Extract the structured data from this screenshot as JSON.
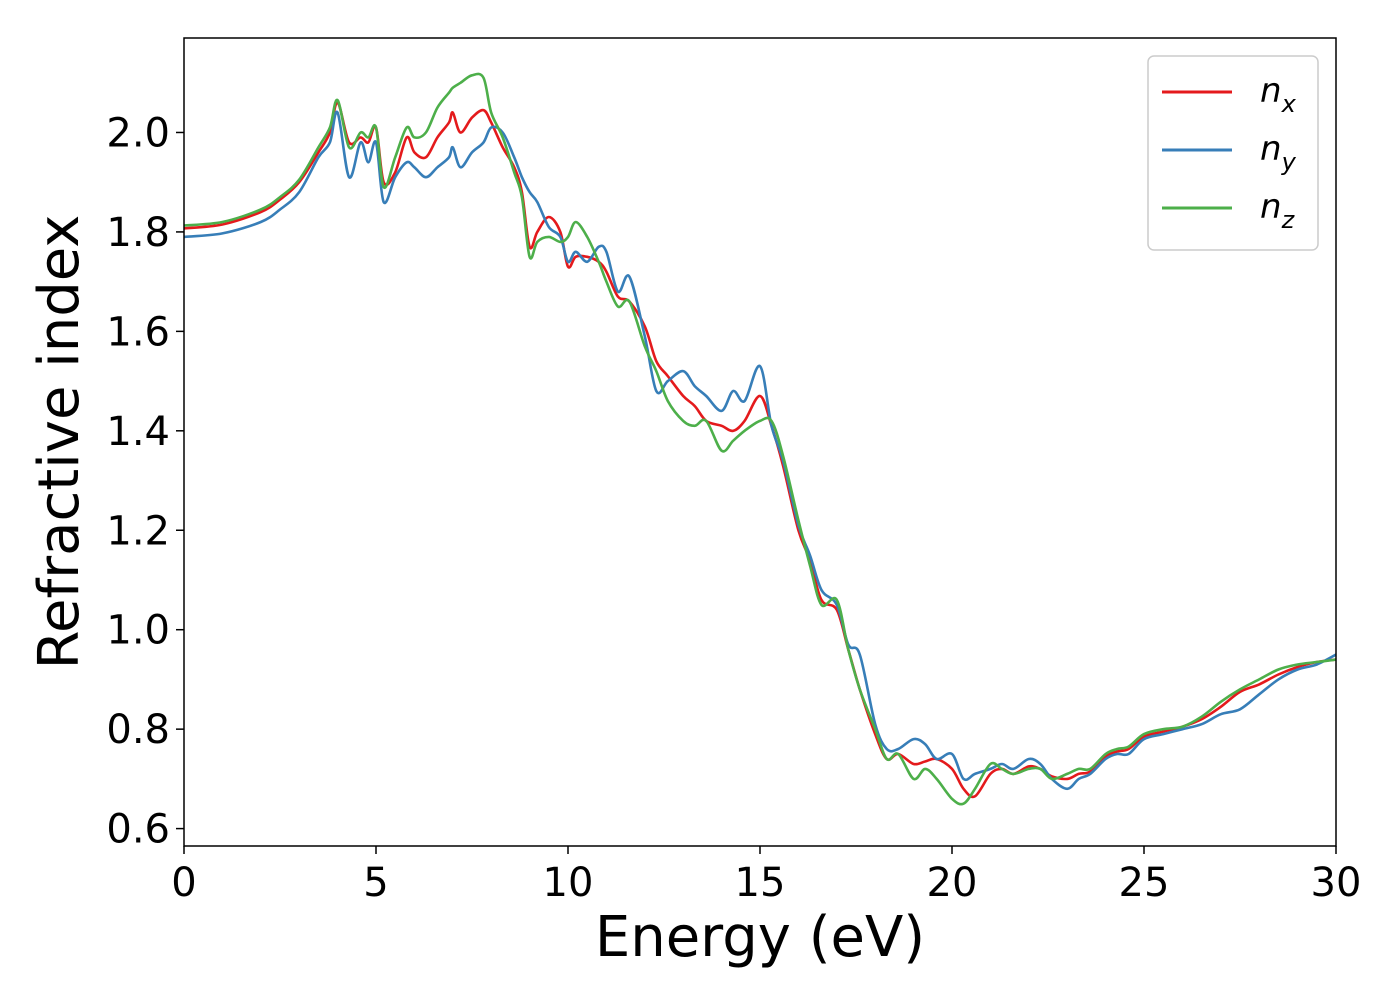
{
  "chart_data": {
    "type": "line",
    "title": "",
    "xlabel": "Energy (eV)",
    "ylabel": "Refractive index",
    "xlim": [
      0,
      30
    ],
    "ylim": [
      0.565,
      2.19
    ],
    "xticks": [
      0,
      5,
      10,
      15,
      20,
      25,
      30
    ],
    "yticks": [
      0.6,
      0.8,
      1.0,
      1.2,
      1.4,
      1.6,
      1.8,
      2.0
    ],
    "xtick_labels": [
      "0",
      "5",
      "10",
      "15",
      "20",
      "25",
      "30"
    ],
    "ytick_labels": [
      "0.6",
      "0.8",
      "1.0",
      "1.2",
      "1.4",
      "1.6",
      "1.8",
      "2.0"
    ],
    "grid": false,
    "legend_position": "top-right",
    "series": [
      {
        "name": "n",
        "subscript": "x",
        "color": "#e41a1c",
        "x": [
          0,
          1,
          2,
          2.5,
          3,
          3.5,
          3.8,
          4.0,
          4.3,
          4.6,
          4.8,
          5.0,
          5.2,
          5.5,
          5.8,
          6.0,
          6.3,
          6.6,
          6.9,
          7.0,
          7.2,
          7.5,
          7.8,
          8.0,
          8.3,
          8.6,
          8.8,
          9.0,
          9.2,
          9.5,
          9.8,
          10.0,
          10.2,
          10.5,
          10.8,
          11.0,
          11.3,
          11.6,
          12.0,
          12.3,
          12.6,
          13.0,
          13.3,
          13.6,
          14.0,
          14.3,
          14.6,
          15.0,
          15.3,
          15.6,
          16.0,
          16.3,
          16.6,
          17.0,
          17.3,
          17.6,
          18.0,
          18.3,
          18.6,
          19.0,
          19.3,
          19.6,
          20.0,
          20.3,
          20.6,
          21.0,
          21.3,
          21.6,
          22.0,
          22.3,
          22.6,
          23.0,
          23.3,
          23.6,
          24.0,
          24.3,
          24.6,
          25.0,
          25.5,
          26.0,
          26.5,
          27.0,
          27.5,
          28.0,
          28.5,
          29.0,
          29.5,
          30.0
        ],
        "values": [
          1.807,
          1.815,
          1.84,
          1.865,
          1.9,
          1.96,
          2.0,
          2.06,
          1.98,
          1.99,
          1.98,
          2.01,
          1.9,
          1.92,
          1.99,
          1.96,
          1.95,
          1.99,
          2.02,
          2.04,
          2.0,
          2.03,
          2.045,
          2.02,
          1.97,
          1.93,
          1.88,
          1.77,
          1.8,
          1.83,
          1.8,
          1.73,
          1.75,
          1.75,
          1.74,
          1.72,
          1.67,
          1.66,
          1.61,
          1.54,
          1.51,
          1.47,
          1.45,
          1.42,
          1.41,
          1.4,
          1.42,
          1.47,
          1.41,
          1.33,
          1.2,
          1.14,
          1.06,
          1.04,
          0.96,
          0.88,
          0.79,
          0.74,
          0.75,
          0.73,
          0.735,
          0.74,
          0.72,
          0.68,
          0.665,
          0.71,
          0.72,
          0.71,
          0.725,
          0.72,
          0.705,
          0.7,
          0.71,
          0.715,
          0.745,
          0.755,
          0.76,
          0.785,
          0.795,
          0.805,
          0.82,
          0.845,
          0.875,
          0.89,
          0.91,
          0.925,
          0.935,
          0.94
        ]
      },
      {
        "name": "n",
        "subscript": "y",
        "color": "#377eb8",
        "x": [
          0,
          1,
          2,
          2.5,
          3,
          3.5,
          3.8,
          4.0,
          4.3,
          4.6,
          4.8,
          5.0,
          5.2,
          5.5,
          5.8,
          6.0,
          6.3,
          6.6,
          6.9,
          7.0,
          7.2,
          7.5,
          7.8,
          8.0,
          8.3,
          8.6,
          8.8,
          9.0,
          9.2,
          9.5,
          9.8,
          10.0,
          10.2,
          10.5,
          10.8,
          11.0,
          11.3,
          11.6,
          12.0,
          12.3,
          12.6,
          13.0,
          13.3,
          13.6,
          14.0,
          14.3,
          14.6,
          15.0,
          15.3,
          15.6,
          16.0,
          16.3,
          16.6,
          17.0,
          17.3,
          17.6,
          18.0,
          18.3,
          18.6,
          19.0,
          19.3,
          19.6,
          20.0,
          20.3,
          20.6,
          21.0,
          21.3,
          21.6,
          22.0,
          22.3,
          22.6,
          23.0,
          23.3,
          23.6,
          24.0,
          24.3,
          24.6,
          25.0,
          25.5,
          26.0,
          26.5,
          27.0,
          27.5,
          28.0,
          28.5,
          29.0,
          29.5,
          30.0
        ],
        "values": [
          1.79,
          1.797,
          1.82,
          1.845,
          1.88,
          1.95,
          1.98,
          2.04,
          1.91,
          1.98,
          1.94,
          1.98,
          1.86,
          1.91,
          1.94,
          1.93,
          1.91,
          1.93,
          1.95,
          1.97,
          1.93,
          1.96,
          1.98,
          2.01,
          2.0,
          1.95,
          1.91,
          1.88,
          1.86,
          1.81,
          1.79,
          1.74,
          1.76,
          1.74,
          1.77,
          1.76,
          1.68,
          1.71,
          1.59,
          1.48,
          1.5,
          1.52,
          1.49,
          1.47,
          1.44,
          1.48,
          1.46,
          1.53,
          1.41,
          1.34,
          1.21,
          1.15,
          1.08,
          1.05,
          0.97,
          0.95,
          0.81,
          0.76,
          0.76,
          0.78,
          0.77,
          0.74,
          0.75,
          0.7,
          0.71,
          0.72,
          0.73,
          0.72,
          0.74,
          0.73,
          0.7,
          0.68,
          0.7,
          0.71,
          0.74,
          0.75,
          0.75,
          0.78,
          0.79,
          0.8,
          0.81,
          0.83,
          0.84,
          0.87,
          0.9,
          0.92,
          0.93,
          0.95
        ]
      },
      {
        "name": "n",
        "subscript": "z",
        "color": "#4daf4a",
        "x": [
          0,
          1,
          2,
          2.5,
          3,
          3.5,
          3.8,
          4.0,
          4.3,
          4.6,
          4.8,
          5.0,
          5.2,
          5.5,
          5.8,
          6.0,
          6.3,
          6.6,
          6.9,
          7.0,
          7.2,
          7.5,
          7.8,
          8.0,
          8.3,
          8.6,
          8.8,
          9.0,
          9.2,
          9.5,
          9.8,
          10.0,
          10.2,
          10.5,
          10.8,
          11.0,
          11.3,
          11.6,
          12.0,
          12.3,
          12.6,
          13.0,
          13.3,
          13.6,
          14.0,
          14.3,
          14.6,
          15.0,
          15.3,
          15.6,
          16.0,
          16.3,
          16.6,
          17.0,
          17.3,
          17.6,
          18.0,
          18.3,
          18.6,
          19.0,
          19.3,
          19.6,
          20.0,
          20.3,
          20.6,
          21.0,
          21.3,
          21.6,
          22.0,
          22.3,
          22.6,
          23.0,
          23.3,
          23.6,
          24.0,
          24.3,
          24.6,
          25.0,
          25.5,
          26.0,
          26.5,
          27.0,
          27.5,
          28.0,
          28.5,
          29.0,
          29.5,
          30.0
        ],
        "values": [
          1.813,
          1.82,
          1.845,
          1.87,
          1.905,
          1.97,
          2.01,
          2.065,
          1.97,
          2.0,
          1.99,
          2.01,
          1.89,
          1.95,
          2.01,
          1.99,
          2.0,
          2.05,
          2.08,
          2.09,
          2.1,
          2.115,
          2.11,
          2.04,
          1.99,
          1.92,
          1.87,
          1.75,
          1.78,
          1.79,
          1.78,
          1.79,
          1.82,
          1.79,
          1.74,
          1.7,
          1.65,
          1.66,
          1.57,
          1.52,
          1.46,
          1.42,
          1.41,
          1.42,
          1.36,
          1.38,
          1.4,
          1.42,
          1.42,
          1.35,
          1.22,
          1.13,
          1.05,
          1.06,
          0.96,
          0.88,
          0.8,
          0.74,
          0.75,
          0.7,
          0.72,
          0.7,
          0.66,
          0.65,
          0.68,
          0.73,
          0.72,
          0.71,
          0.72,
          0.72,
          0.7,
          0.71,
          0.72,
          0.72,
          0.75,
          0.76,
          0.765,
          0.79,
          0.8,
          0.805,
          0.825,
          0.855,
          0.88,
          0.9,
          0.92,
          0.93,
          0.935,
          0.94
        ]
      }
    ]
  }
}
